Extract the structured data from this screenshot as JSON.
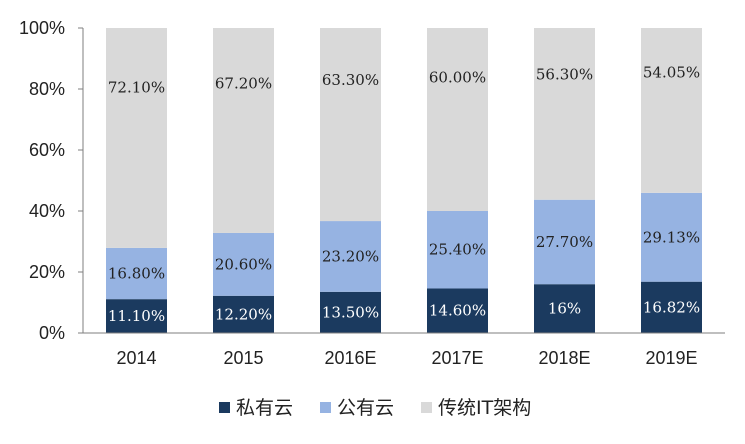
{
  "chart_data": {
    "type": "bar",
    "stacked": true,
    "categories": [
      "2014",
      "2015",
      "2016E",
      "2017E",
      "2018E",
      "2019E"
    ],
    "series": [
      {
        "name": "私有云",
        "color": "#1b3a5f",
        "values": [
          11.1,
          12.2,
          13.5,
          14.6,
          16,
          16.82
        ],
        "labels": [
          "11.10%",
          "12.20%",
          "13.50%",
          "14.60%",
          "16%",
          "16.82%"
        ]
      },
      {
        "name": "公有云",
        "color": "#96b3e2",
        "values": [
          16.8,
          20.6,
          23.2,
          25.4,
          27.7,
          29.13
        ],
        "labels": [
          "16.80%",
          "20.60%",
          "23.20%",
          "25.40%",
          "27.70%",
          "29.13%"
        ]
      },
      {
        "name": "传统IT架构",
        "color": "#d9d9d9",
        "values": [
          72.1,
          67.2,
          63.3,
          60.0,
          56.3,
          54.05
        ],
        "labels": [
          "72.10%",
          "67.20%",
          "63.30%",
          "60.00%",
          "56.30%",
          "54.05%"
        ]
      }
    ],
    "y_ticks": [
      "0%",
      "20%",
      "40%",
      "60%",
      "80%",
      "100%"
    ],
    "ylim": [
      0,
      100
    ],
    "title": "",
    "xlabel": "",
    "ylabel": "",
    "legend_position": "bottom",
    "grid": false
  }
}
